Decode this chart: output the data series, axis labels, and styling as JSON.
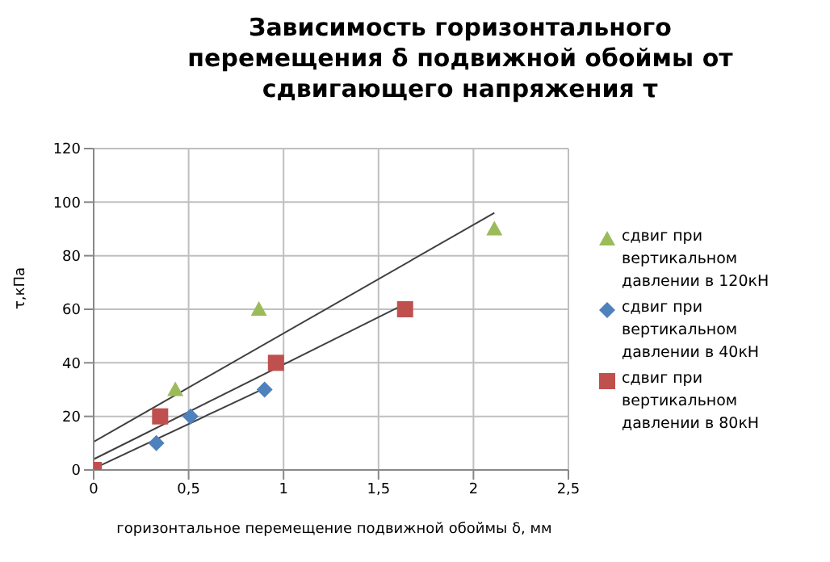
{
  "chart_data": {
    "type": "scatter",
    "title": "Зависимость горизонтального перемещения δ подвижной обоймы от сдвигающего напряжения τ",
    "xlabel": "горизонтальное перемещение подвижной обоймы δ, мм",
    "ylabel": "τ,кПа",
    "xlim": [
      0,
      2.5
    ],
    "xticks": [
      0,
      {
        "value": 0.5,
        "label": "0,5"
      },
      1,
      {
        "value": 1.5,
        "label": "1,5"
      },
      2,
      {
        "value": 2.5,
        "label": "2,5"
      }
    ],
    "ylim": [
      0,
      120
    ],
    "yticks": [
      0,
      20,
      40,
      60,
      80,
      100,
      120
    ],
    "grid": true,
    "legend": "right",
    "series": [
      {
        "name": "сдвиг при вертикальном давлении в 120кН",
        "color": "#9bbb59",
        "marker": "triangle",
        "x": [
          0.43,
          0.87,
          2.11
        ],
        "values": [
          30,
          60,
          90
        ]
      },
      {
        "name": "сдвиг при вертикальном давлении в 40кН",
        "color": "#4f81bd",
        "marker": "diamond",
        "x": [
          0.33,
          0.51,
          0.9
        ],
        "values": [
          10,
          20,
          30
        ]
      },
      {
        "name": "сдвиг при вертикальном давлении в 80кН",
        "color": "#c0504d",
        "marker": "square",
        "x": [
          0,
          0.35,
          0.96,
          1.64
        ],
        "values": [
          0,
          20,
          40,
          60
        ]
      },
      {
        "type": "line",
        "color": "#404040",
        "line_style": "solid",
        "x": [
          0,
          2.11
        ],
        "values": [
          10.5,
          96
        ]
      },
      {
        "type": "line",
        "color": "#404040",
        "line_style": "solid",
        "x": [
          0,
          1.64
        ],
        "values": [
          4,
          62
        ]
      },
      {
        "type": "line",
        "color": "#404040",
        "line_style": "solid",
        "x": [
          0,
          0.9
        ],
        "values": [
          0.5,
          30.5
        ]
      }
    ]
  }
}
